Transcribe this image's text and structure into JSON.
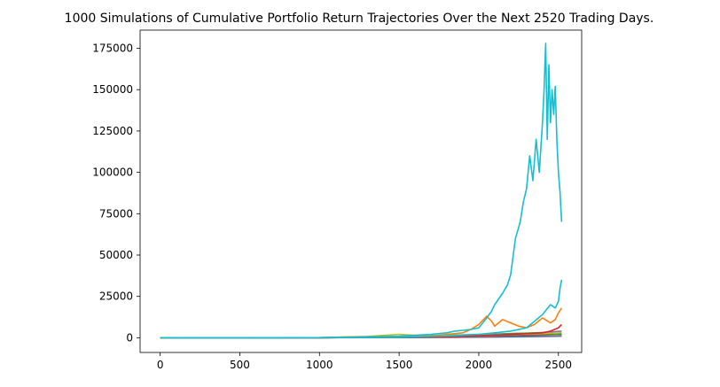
{
  "chart_data": {
    "type": "line",
    "title": "1000 Simulations of Cumulative Portfolio Return Trajectories Over the Next 2520 Trading Days.",
    "xlabel": "",
    "ylabel": "",
    "xlim": [
      -126,
      2646
    ],
    "ylim": [
      -8900,
      186000
    ],
    "x_ticks": [
      0,
      500,
      1000,
      1500,
      2000,
      2500
    ],
    "y_ticks": [
      0,
      25000,
      50000,
      75000,
      100000,
      125000,
      150000,
      175000
    ],
    "legend": "none",
    "grid": false,
    "series": [
      {
        "color": "#17becf",
        "x": [
          0,
          250,
          500,
          750,
          1000,
          1100,
          1200,
          1300,
          1400,
          1500,
          1600,
          1700,
          1800,
          1850,
          1900,
          1950,
          2000,
          2050,
          2080,
          2100,
          2150,
          2180,
          2200,
          2230,
          2260,
          2280,
          2300,
          2320,
          2340,
          2360,
          2380,
          2400,
          2410,
          2420,
          2430,
          2440,
          2450,
          2460,
          2470,
          2480,
          2490,
          2500,
          2510,
          2520
        ],
        "y": [
          0,
          0,
          0,
          0,
          50,
          200,
          300,
          600,
          700,
          900,
          1500,
          2000,
          3000,
          4000,
          4500,
          5000,
          6000,
          12000,
          16000,
          20000,
          27000,
          32000,
          38000,
          60000,
          70000,
          82000,
          90000,
          110000,
          95000,
          120000,
          100000,
          130000,
          150000,
          178000,
          120000,
          165000,
          130000,
          150000,
          135000,
          152000,
          120000,
          100000,
          88000,
          70000
        ]
      },
      {
        "color": "#17becf",
        "x": [
          0,
          1000,
          1500,
          1800,
          1900,
          2000,
          2100,
          2200,
          2300,
          2350,
          2400,
          2450,
          2480,
          2500,
          2510,
          2520
        ],
        "y": [
          0,
          20,
          300,
          1000,
          1500,
          2000,
          3000,
          4000,
          6000,
          10000,
          14000,
          20000,
          18000,
          22000,
          30000,
          35000
        ]
      },
      {
        "color": "#ff7f0e",
        "x": [
          0,
          1000,
          1200,
          1500,
          1700,
          1800,
          1900,
          1950,
          2000,
          2050,
          2080,
          2100,
          2150,
          2200,
          2250,
          2300,
          2350,
          2400,
          2450,
          2480,
          2500,
          2520
        ],
        "y": [
          0,
          50,
          500,
          800,
          1000,
          2000,
          3000,
          5000,
          8000,
          13000,
          10000,
          7000,
          11000,
          9000,
          7000,
          6000,
          8000,
          12000,
          9000,
          11000,
          15000,
          18000
        ]
      },
      {
        "color": "#d62728",
        "x": [
          0,
          1000,
          1500,
          1800,
          2000,
          2200,
          2300,
          2400,
          2450,
          2500,
          2520
        ],
        "y": [
          0,
          30,
          200,
          600,
          1200,
          2000,
          2500,
          3000,
          4000,
          6000,
          8000
        ]
      },
      {
        "color": "#bcbd22",
        "x": [
          0,
          1000,
          1300,
          1500,
          1600,
          1800,
          2000,
          2200,
          2400,
          2520
        ],
        "y": [
          0,
          100,
          800,
          2000,
          1500,
          1200,
          1500,
          2000,
          2500,
          3000
        ]
      },
      {
        "color": "#2ca02c",
        "x": [
          0,
          1000,
          1500,
          2000,
          2200,
          2400,
          2520
        ],
        "y": [
          0,
          50,
          400,
          1000,
          2500,
          3000,
          2000
        ]
      },
      {
        "color": "#9467bd",
        "x": [
          0,
          1000,
          1500,
          2000,
          2300,
          2520
        ],
        "y": [
          0,
          20,
          300,
          800,
          2500,
          4000
        ]
      },
      {
        "color": "#8c564b",
        "x": [
          0,
          1000,
          1500,
          2000,
          2300,
          2520
        ],
        "y": [
          0,
          30,
          200,
          600,
          1500,
          2500
        ]
      },
      {
        "color": "#7f7f7f",
        "x": [
          0,
          1000,
          1500,
          2000,
          2300,
          2520
        ],
        "y": [
          0,
          30,
          200,
          500,
          1500,
          1200
        ]
      },
      {
        "color": "#1f77b4",
        "x": [
          0,
          1000,
          1500,
          2000,
          2300,
          2520
        ],
        "y": [
          0,
          20,
          150,
          400,
          800,
          1000
        ]
      },
      {
        "color": "#e377c2",
        "x": [
          0,
          1000,
          1500,
          2000,
          2300,
          2520
        ],
        "y": [
          0,
          10,
          100,
          300,
          600,
          900
        ]
      },
      {
        "color": "#17becf",
        "x": [
          0,
          1000,
          1500,
          1800,
          2000,
          2200,
          2400,
          2520
        ],
        "y": [
          0,
          40,
          500,
          1500,
          2000,
          2500,
          3000,
          2000
        ]
      }
    ]
  }
}
